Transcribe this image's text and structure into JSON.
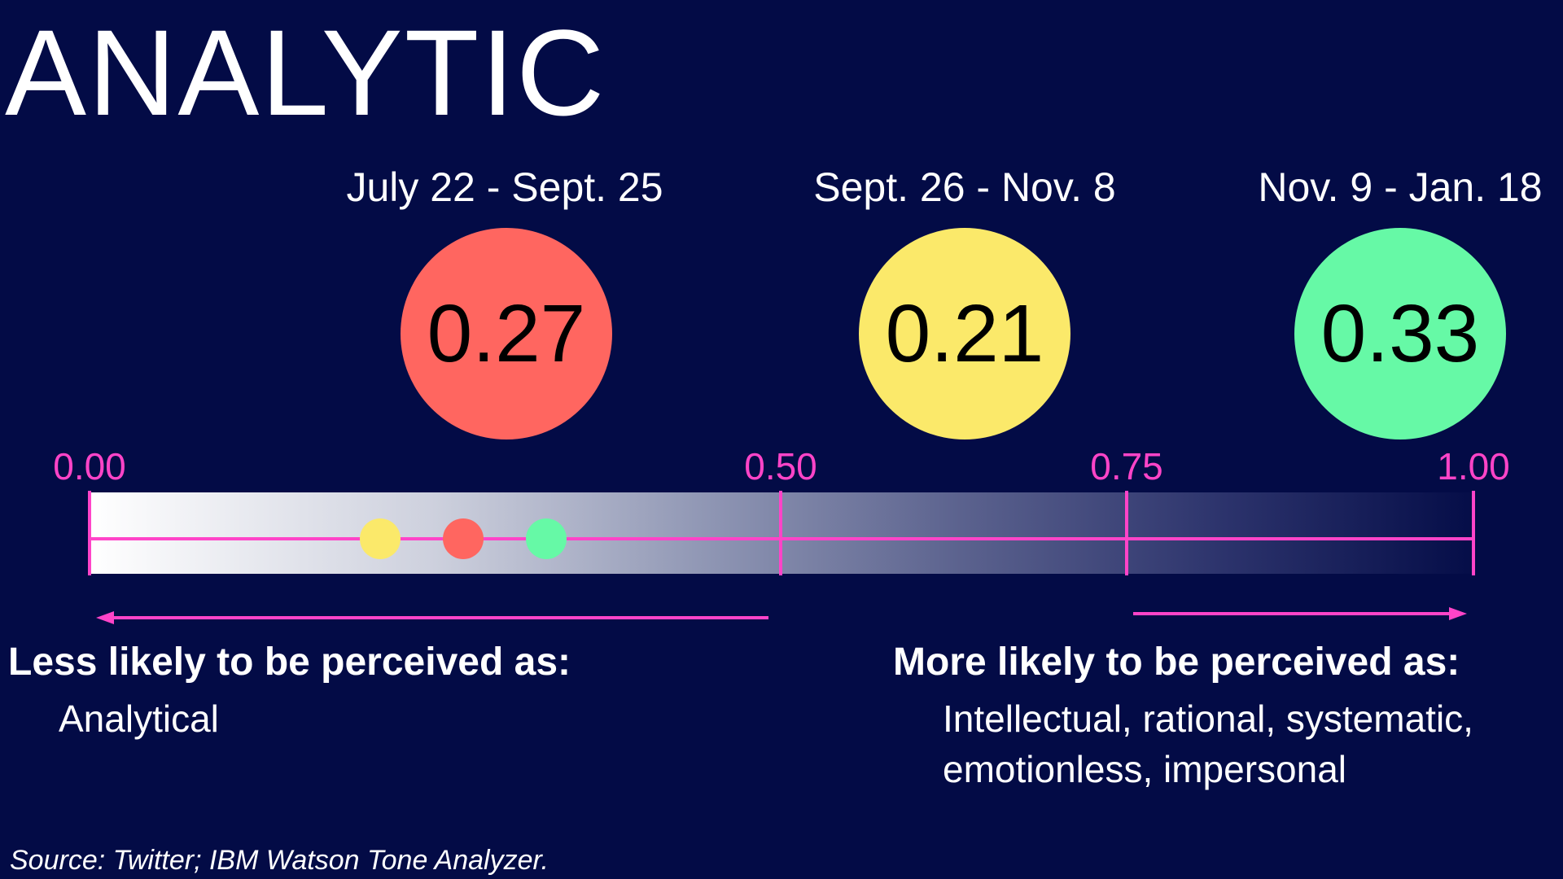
{
  "title": "ANALYTIC",
  "colors": {
    "background": "#030b46",
    "axis": "#ff44c8",
    "red": "#ff6660",
    "yellow": "#fbe96a",
    "green": "#66f9a6"
  },
  "chart_data": {
    "type": "scatter",
    "title": "ANALYTIC",
    "xlim": [
      0,
      1
    ],
    "ticks": [
      "0.00",
      "0.50",
      "0.75",
      "1.00"
    ],
    "periods": [
      {
        "label": "July 22 - Sept. 25",
        "value": 0.27,
        "value_label": "0.27",
        "color": "#ff6660"
      },
      {
        "label": "Sept. 26 - Nov. 8",
        "value": 0.21,
        "value_label": "0.21",
        "color": "#fbe96a"
      },
      {
        "label": "Nov. 9 - Jan. 18",
        "value": 0.33,
        "value_label": "0.33",
        "color": "#66f9a6"
      }
    ]
  },
  "left_side": {
    "heading": "Less likely to be perceived as:",
    "description": [
      "Analytical"
    ]
  },
  "right_side": {
    "heading": "More likely to be perceived as:",
    "description": [
      "Intellectual, rational, systematic,",
      "emotionless, impersonal"
    ]
  },
  "source": "Source: Twitter; IBM Watson Tone Analyzer."
}
